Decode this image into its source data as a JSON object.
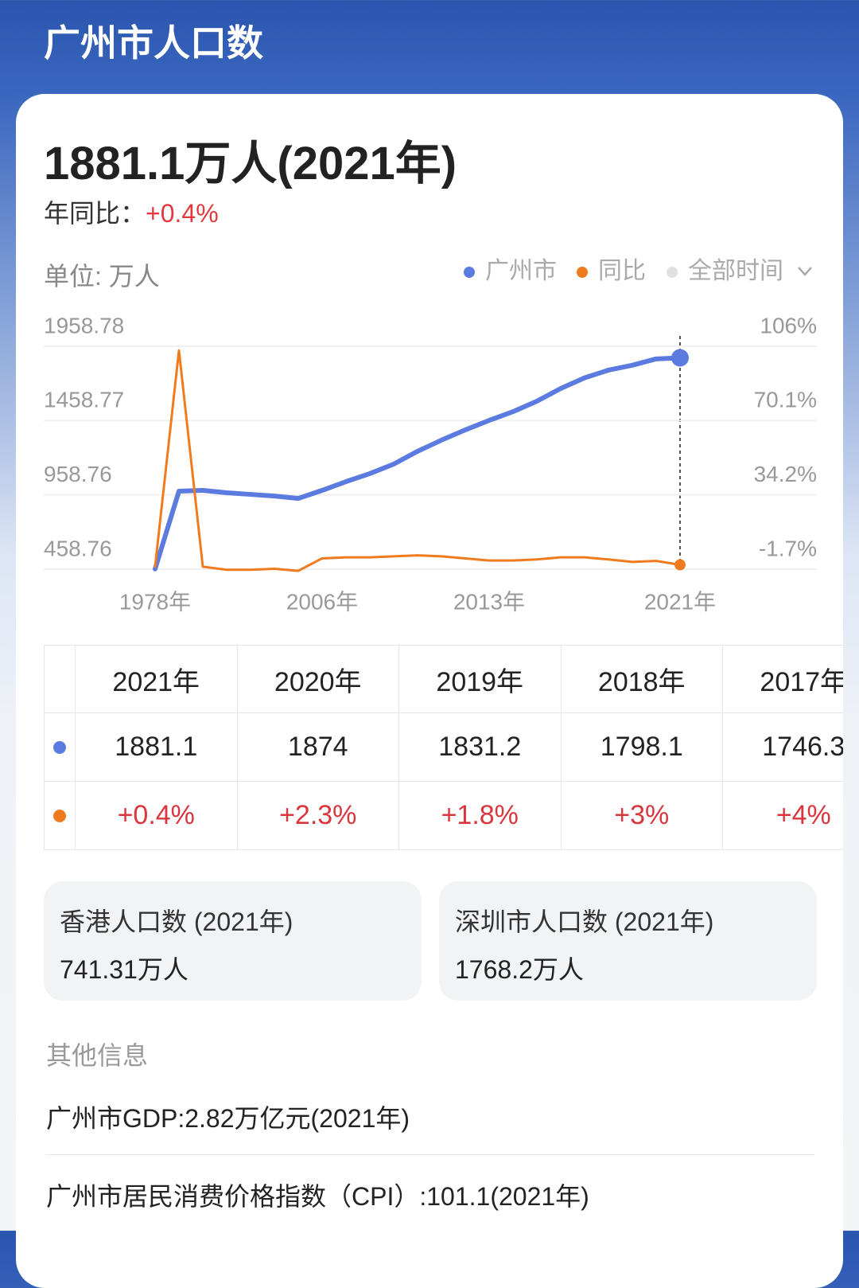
{
  "header": {
    "title": "广州市人口数"
  },
  "summary": {
    "headline": "1881.1万人(2021年)",
    "yoy_label": "年同比：",
    "yoy_value": "+0.4%"
  },
  "chart_data": {
    "type": "line",
    "unit_label": "单位: 万人",
    "range_selector": "全部时间",
    "categories": [
      "1978年",
      null,
      null,
      null,
      null,
      null,
      null,
      "2006年",
      null,
      null,
      null,
      null,
      null,
      null,
      "2013年",
      null,
      null,
      null,
      null,
      null,
      null,
      null,
      "2021年"
    ],
    "series": [
      {
        "name": "广州市",
        "color": "#5b7be0",
        "values": [
          460,
          984,
          989,
          973,
          962,
          951,
          935,
          989,
          1048,
          1102,
          1166,
          1252,
          1327,
          1396,
          1460,
          1519,
          1589,
          1675,
          1746.3,
          1798.1,
          1831.2,
          1874,
          1881.1
        ]
      },
      {
        "name": "同比",
        "color": "#f07b1e",
        "axis": "y2",
        "values": [
          -0.5,
          104,
          -0.5,
          -2,
          -2,
          -1.5,
          -2.5,
          3.5,
          4,
          4,
          4.5,
          5,
          4.5,
          3.5,
          2.5,
          2.5,
          3,
          4,
          4,
          3,
          1.8,
          2.3,
          0.4
        ]
      }
    ],
    "ylim": [
      458.76,
      1958.78
    ],
    "yticks": [
      458.76,
      958.76,
      1458.77,
      1958.78
    ],
    "y2lim": [
      -1.7,
      106
    ],
    "y2ticks": [
      {
        "value": -1.7,
        "label": "-1.7%"
      },
      {
        "value": 34.2,
        "label": "34.2%"
      },
      {
        "value": 70.1,
        "label": "70.1%"
      },
      {
        "value": 106,
        "label": "106%"
      }
    ],
    "grid": true
  },
  "table": {
    "headers": [
      "2021年",
      "2020年",
      "2019年",
      "2018年",
      "2017年"
    ],
    "rows": [
      [
        "1881.1",
        "1874",
        "1831.2",
        "1798.1",
        "1746.3"
      ],
      [
        "+0.4%",
        "+2.3%",
        "+1.8%",
        "+3%",
        "+4%"
      ]
    ]
  },
  "cards": [
    {
      "title": "香港人口数 (2021年)",
      "value": "741.31万人"
    },
    {
      "title": "深圳市人口数 (2021年)",
      "value": "1768.2万人"
    }
  ],
  "other_info": {
    "title": "其他信息",
    "items": [
      "广州市GDP:2.82万亿元(2021年)",
      "广州市居民消费价格指数（CPI）:101.1(2021年)"
    ]
  }
}
